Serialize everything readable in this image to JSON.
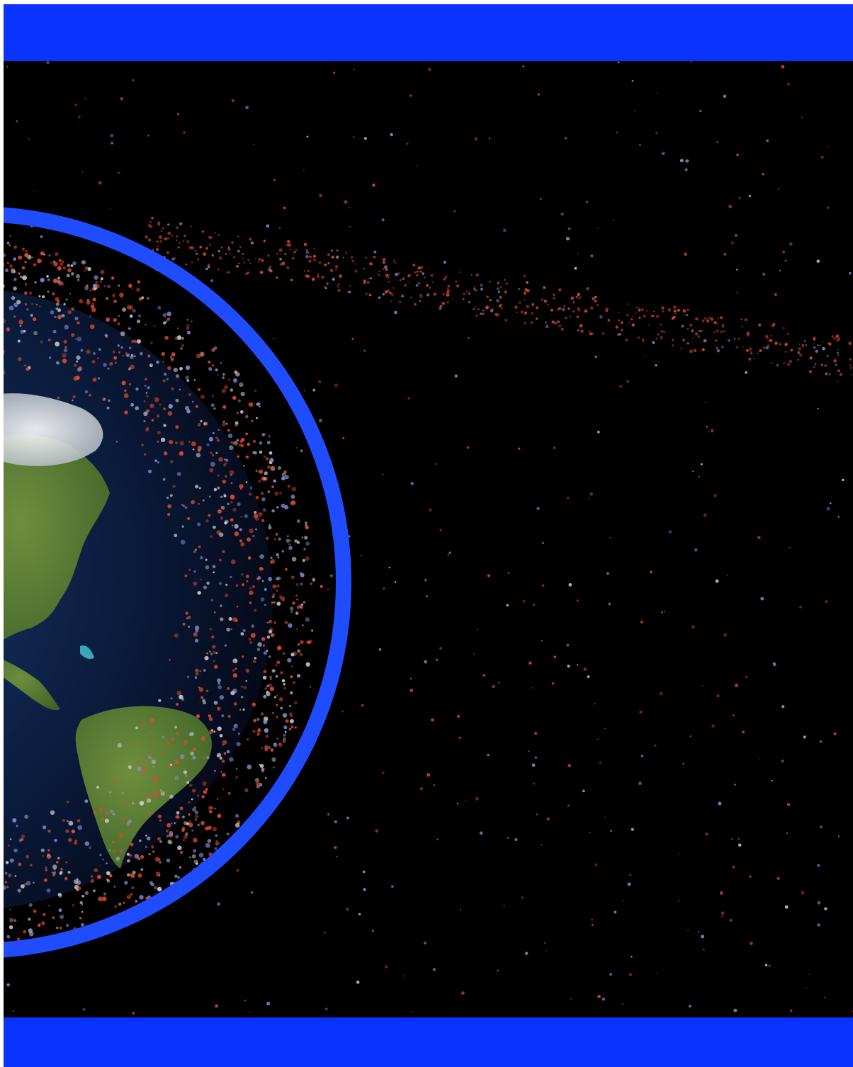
{
  "scene": {
    "subject": "earth-with-orbital-debris",
    "colors": {
      "band": "#0b33ff",
      "ring": "#1f4cff",
      "space": "#000000",
      "ocean": "#0a1a3a",
      "land": "#4f7a32",
      "ice": "#e8e8e8",
      "debris_red": "#e04a2a",
      "debris_blue": "#7f8fd8",
      "debris_white": "#cccccc"
    }
  }
}
